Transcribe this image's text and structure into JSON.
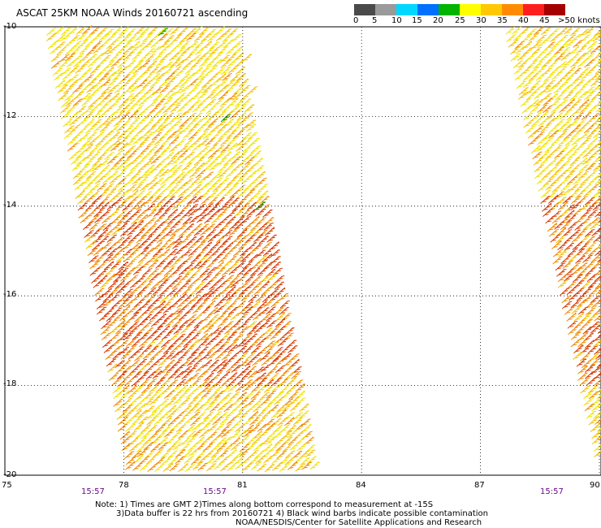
{
  "title": "ASCAT 25KM NOAA Winds 20160721 ascending",
  "legend": {
    "labels": [
      "0",
      "5",
      "10",
      "15",
      "20",
      "25",
      "30",
      "35",
      "40",
      "45",
      ">50 knots"
    ],
    "colors": [
      "#4a4a4a",
      "#9a9a9a",
      "#00d7ff",
      "#0070ff",
      "#00b400",
      "#ffff00",
      "#ffc800",
      "#ff8c00",
      "#ff1e1e",
      "#a50000",
      "#6e3c28",
      "#d200d2",
      "#3c006e"
    ]
  },
  "map": {
    "lon_ticks": [
      "75",
      "78",
      "81",
      "84",
      "87",
      "90"
    ],
    "lat_ticks": [
      "-10",
      "-12",
      "-14",
      "-16",
      "-18",
      "-20"
    ],
    "lon_range": [
      75,
      90
    ],
    "lat_range": [
      -20,
      -10
    ],
    "pass_times": [
      "15:57",
      "15:57",
      "15:57"
    ],
    "barb_colors": {
      "yellow": "#f2e200",
      "gold": "#f5c000",
      "orange": "#f08a00",
      "red": "#d83a00",
      "green": "#00a000"
    }
  },
  "notes": {
    "line1": "Note: 1) Times are GMT 2)Times along bottom correspond to measurement at -15S",
    "line2": "3)Data buffer is 22 hrs from 20160721 4) Black wind barbs indicate possible contamination",
    "credit": "NOAA/NESDIS/Center for Satellite Applications and Research"
  }
}
